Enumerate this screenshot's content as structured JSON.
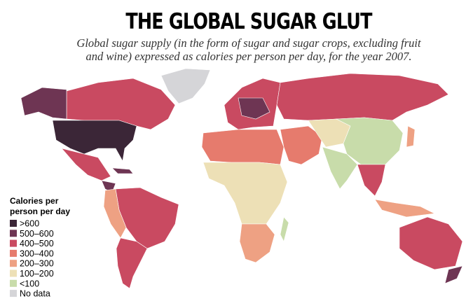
{
  "header": {
    "title": "THE GLOBAL SUGAR GLUT",
    "subtitle_lines": [
      "Global sugar supply (in the form of sugar and sugar crops, excluding fruit",
      "and wine) expressed as calories per person per day, for the year 2007."
    ]
  },
  "legend": {
    "title_lines": [
      "Calories per",
      "person per day"
    ],
    "items": [
      {
        "label": ">600",
        "color": "#3b2637"
      },
      {
        "label": "500–600",
        "color": "#6e3553"
      },
      {
        "label": "400–500",
        "color": "#c94a61"
      },
      {
        "label": "300–400",
        "color": "#e67b6d"
      },
      {
        "label": "200–300",
        "color": "#eea183"
      },
      {
        "label": "100–200",
        "color": "#ede0b6"
      },
      {
        "label": "<100",
        "color": "#c8dcaa"
      },
      {
        "label": "No data",
        "color": "#d5d5d8"
      }
    ]
  }
}
